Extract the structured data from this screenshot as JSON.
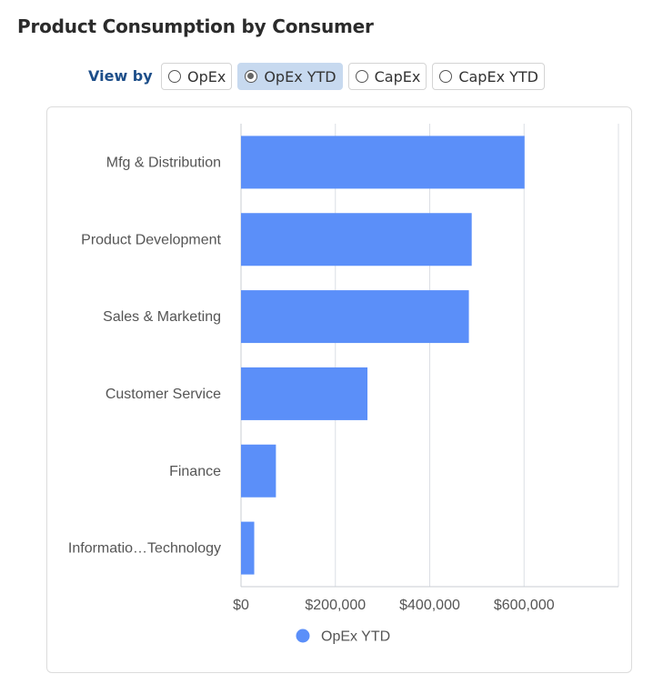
{
  "page": {
    "title": "Product Consumption by Consumer"
  },
  "view_by": {
    "label": "View by",
    "options": [
      {
        "label": "OpEx",
        "selected": false
      },
      {
        "label": "OpEx YTD",
        "selected": true
      },
      {
        "label": "CapEx",
        "selected": false
      },
      {
        "label": "CapEx YTD",
        "selected": false
      }
    ]
  },
  "colors": {
    "bar": "#5b8ff9",
    "grid": "#dcdfe5",
    "axis": "#c8ccd3",
    "text": "#555555"
  },
  "chart_data": {
    "type": "bar",
    "orientation": "horizontal",
    "categories": [
      "Mfg & Distribution",
      "Product Development",
      "Sales & Marketing",
      "Customer Service",
      "Finance",
      "Informatio…Technology"
    ],
    "series": [
      {
        "name": "OpEx YTD",
        "values": [
          601000,
          489000,
          483000,
          268000,
          74000,
          28000
        ]
      }
    ],
    "xlim": [
      0,
      800000
    ],
    "xticks": [
      0,
      200000,
      400000,
      600000
    ],
    "xtick_labels": [
      "$0",
      "$200,000",
      "$400,000",
      "$600,000"
    ],
    "title": "",
    "xlabel": "",
    "ylabel": "",
    "grid": true,
    "legend": {
      "position": "bottom-center",
      "entries": [
        "OpEx YTD"
      ]
    }
  }
}
